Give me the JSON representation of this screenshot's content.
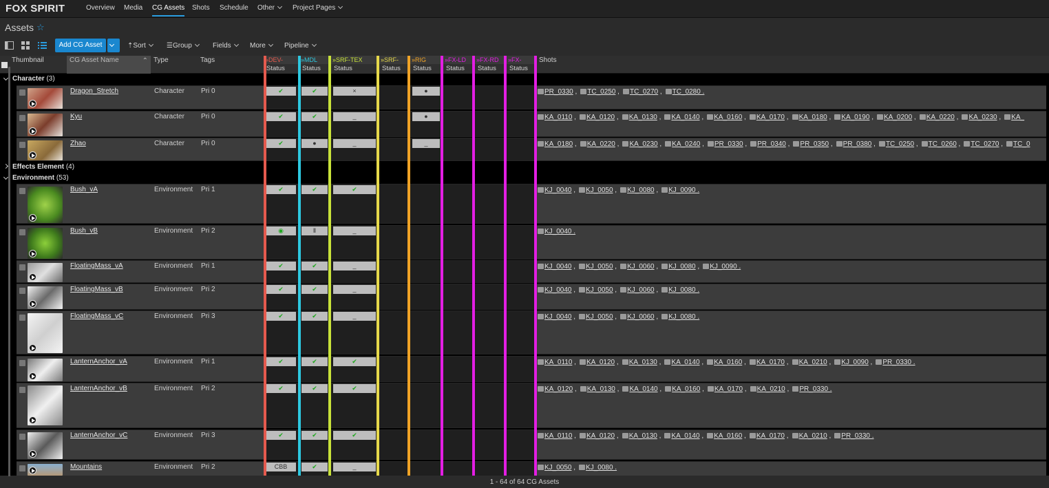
{
  "app": {
    "title": "FOX SPIRIT"
  },
  "nav": [
    {
      "label": "Overview"
    },
    {
      "label": "Media"
    },
    {
      "label": "CG Assets"
    },
    {
      "label": "Shots"
    },
    {
      "label": "Schedule"
    },
    {
      "label": "Other"
    },
    {
      "label": "Project Pages"
    }
  ],
  "page": {
    "title": "Assets"
  },
  "toolbar": {
    "add": "Add CG Asset",
    "sort": "Sort",
    "group": "Group",
    "fields": "Fields",
    "more": "More",
    "pipeline": "Pipeline"
  },
  "columns": {
    "thumbnail": "Thumbnail",
    "name": "CG Asset Name",
    "type": "Type",
    "tags": "Tags",
    "shots": "Shots"
  },
  "pipeline": [
    {
      "step": "DEV-",
      "sub": "Status",
      "color": "#e55a4e"
    },
    {
      "step": "MDL",
      "sub": "Status",
      "color": "#2dc8e0"
    },
    {
      "step": "SRF-TEX",
      "sub": "Status",
      "color": "#c8e23a"
    },
    {
      "step": "SRF-",
      "sub": "Status",
      "color": "#e6d84a"
    },
    {
      "step": "RIG",
      "sub": "Status",
      "color": "#f0a326"
    },
    {
      "step": "FX-LD",
      "sub": "Status",
      "color": "#e31ee3"
    },
    {
      "step": "FX-RD",
      "sub": "Status",
      "color": "#e31ee3"
    },
    {
      "step": "FX-",
      "sub": "Status",
      "color": "#e31ee3"
    }
  ],
  "groups": [
    {
      "name": "Character",
      "count": "(3)"
    },
    {
      "name": "Effects Element",
      "count": "(4)"
    },
    {
      "name": "Environment",
      "count": "(53)"
    }
  ],
  "rows": [
    {
      "name": "Dragon_Stretch",
      "type": "Character",
      "tags": "Pri 0",
      "dev": "✔",
      "mdl": "✔",
      "srf": "×",
      "rig": "●",
      "shots": "PR_0330 , TC_0250 , TC_0270 , TC_0280 ."
    },
    {
      "name": "Kyu",
      "type": "Character",
      "tags": "Pri 0",
      "dev": "✔",
      "mdl": "✔",
      "srf": "_",
      "rig": "●",
      "shots": "KA_0110 , KA_0120 , KA_0130 , KA_0140 , KA_0160 , KA_0170 , KA_0180 , KA_0190 , KA_0200 , KA_0220 , KA_0230 , KA_"
    },
    {
      "name": "Zhao",
      "type": "Character",
      "tags": "Pri 0",
      "dev": "✔",
      "mdl": "●",
      "srf": "_",
      "rig": "_",
      "shots": "KA_0180 , KA_0220 , KA_0230 , KA_0240 , PR_0330 , PR_0340 , PR_0350 , PR_0380 , TC_0250 , TC_0260 , TC_0270 , TC_0"
    },
    {
      "name": "Bush_vA",
      "type": "Environment",
      "tags": "Pri 1",
      "dev": "✔",
      "mdl": "✔",
      "srf": "✔",
      "rig": "",
      "shots": "KJ_0040 , KJ_0050 , KJ_0080 , KJ_0090 ."
    },
    {
      "name": "Bush_vB",
      "type": "Environment",
      "tags": "Pri 2",
      "dev": "◉",
      "mdl": "Ⅱ",
      "srf": "_",
      "rig": "",
      "shots": "KJ_0040 ."
    },
    {
      "name": "FloatingMass_vA",
      "type": "Environment",
      "tags": "Pri 1",
      "dev": "✔",
      "mdl": "✔",
      "srf": "_",
      "rig": "",
      "shots": "KJ_0040 , KJ_0050 , KJ_0060 , KJ_0080 , KJ_0090 ."
    },
    {
      "name": "FloatingMass_vB",
      "type": "Environment",
      "tags": "Pri 2",
      "dev": "✔",
      "mdl": "✔",
      "srf": "_",
      "rig": "",
      "shots": "KJ_0040 , KJ_0050 , KJ_0060 , KJ_0080 ."
    },
    {
      "name": "FloatingMass_vC",
      "type": "Environment",
      "tags": "Pri 3",
      "dev": "✔",
      "mdl": "✔",
      "srf": "_",
      "rig": "",
      "shots": "KJ_0040 , KJ_0050 , KJ_0060 , KJ_0080 ."
    },
    {
      "name": "LanternAnchor_vA",
      "type": "Environment",
      "tags": "Pri 1",
      "dev": "✔",
      "mdl": "✔",
      "srf": "✔",
      "rig": "",
      "shots": "KA_0110 , KA_0120 , KA_0130 , KA_0140 , KA_0160 , KA_0170 , KA_0210 , KJ_0090 , PR_0330 ."
    },
    {
      "name": "LanternAnchor_vB",
      "type": "Environment",
      "tags": "Pri 2",
      "dev": "✔",
      "mdl": "✔",
      "srf": "✔",
      "rig": "",
      "shots": "KA_0120 , KA_0130 , KA_0140 , KA_0160 , KA_0170 , KA_0210 , PR_0330 ."
    },
    {
      "name": "LanternAnchor_vC",
      "type": "Environment",
      "tags": "Pri 3",
      "dev": "✔",
      "mdl": "✔",
      "srf": "✔",
      "rig": "",
      "shots": "KA_0110 , KA_0120 , KA_0130 , KA_0140 , KA_0160 , KA_0170 , KA_0210 , PR_0330 ."
    },
    {
      "name": "Mountains",
      "type": "Environment",
      "tags": "Pri 2",
      "dev": "CBB",
      "mdl": "✔",
      "srf": "_",
      "rig": "",
      "shots": "KJ_0050 , KJ_0080 ."
    }
  ],
  "footer": "1 - 64 of 64 CG Assets"
}
